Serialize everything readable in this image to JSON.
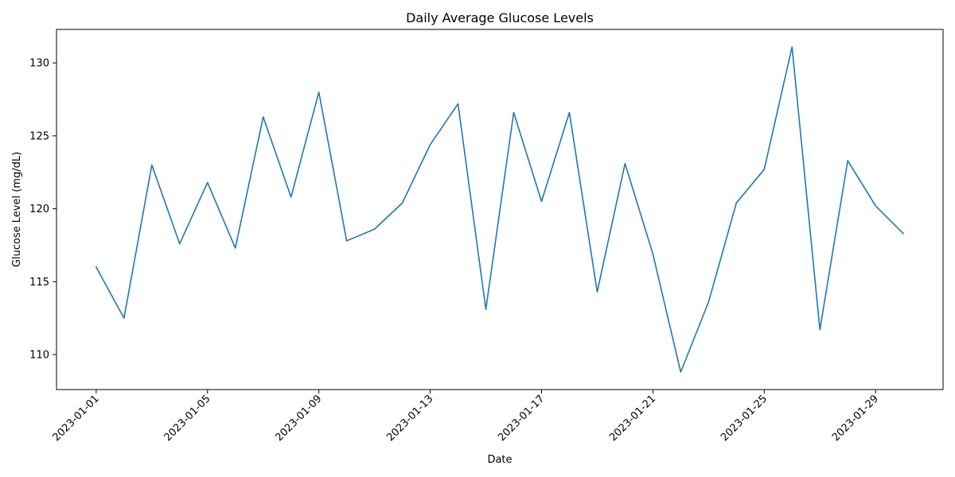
{
  "chart_data": {
    "type": "line",
    "title": "Daily Average Glucose Levels",
    "xlabel": "Date",
    "ylabel": "Glucose Level (mg/dL)",
    "x": [
      "2023-01-01",
      "2023-01-02",
      "2023-01-03",
      "2023-01-04",
      "2023-01-05",
      "2023-01-06",
      "2023-01-07",
      "2023-01-08",
      "2023-01-09",
      "2023-01-10",
      "2023-01-11",
      "2023-01-12",
      "2023-01-13",
      "2023-01-14",
      "2023-01-15",
      "2023-01-16",
      "2023-01-17",
      "2023-01-18",
      "2023-01-19",
      "2023-01-20",
      "2023-01-21",
      "2023-01-22",
      "2023-01-23",
      "2023-01-24",
      "2023-01-25",
      "2023-01-26",
      "2023-01-27",
      "2023-01-28",
      "2023-01-29",
      "2023-01-30"
    ],
    "series": [
      {
        "name": "",
        "color": "#1f77b4",
        "values": [
          116.0,
          112.5,
          123.0,
          117.6,
          121.8,
          117.3,
          126.3,
          120.8,
          128.0,
          117.8,
          118.6,
          120.4,
          124.4,
          127.2,
          113.1,
          126.6,
          120.5,
          126.6,
          114.3,
          123.1,
          116.9,
          108.8,
          113.6,
          120.4,
          122.7,
          131.1,
          111.7,
          123.3,
          120.2,
          118.3
        ]
      }
    ],
    "xticks": [
      "2023-01-01",
      "2023-01-05",
      "2023-01-09",
      "2023-01-13",
      "2023-01-17",
      "2023-01-21",
      "2023-01-25",
      "2023-01-29"
    ],
    "yticks": [
      110,
      115,
      120,
      125,
      130
    ],
    "ylim": [
      107.6,
      132.3
    ],
    "xlim": [
      "2022-12-30T13:48:00",
      "2023-01-31T10:12:00"
    ],
    "grid": false,
    "legend": "none"
  }
}
